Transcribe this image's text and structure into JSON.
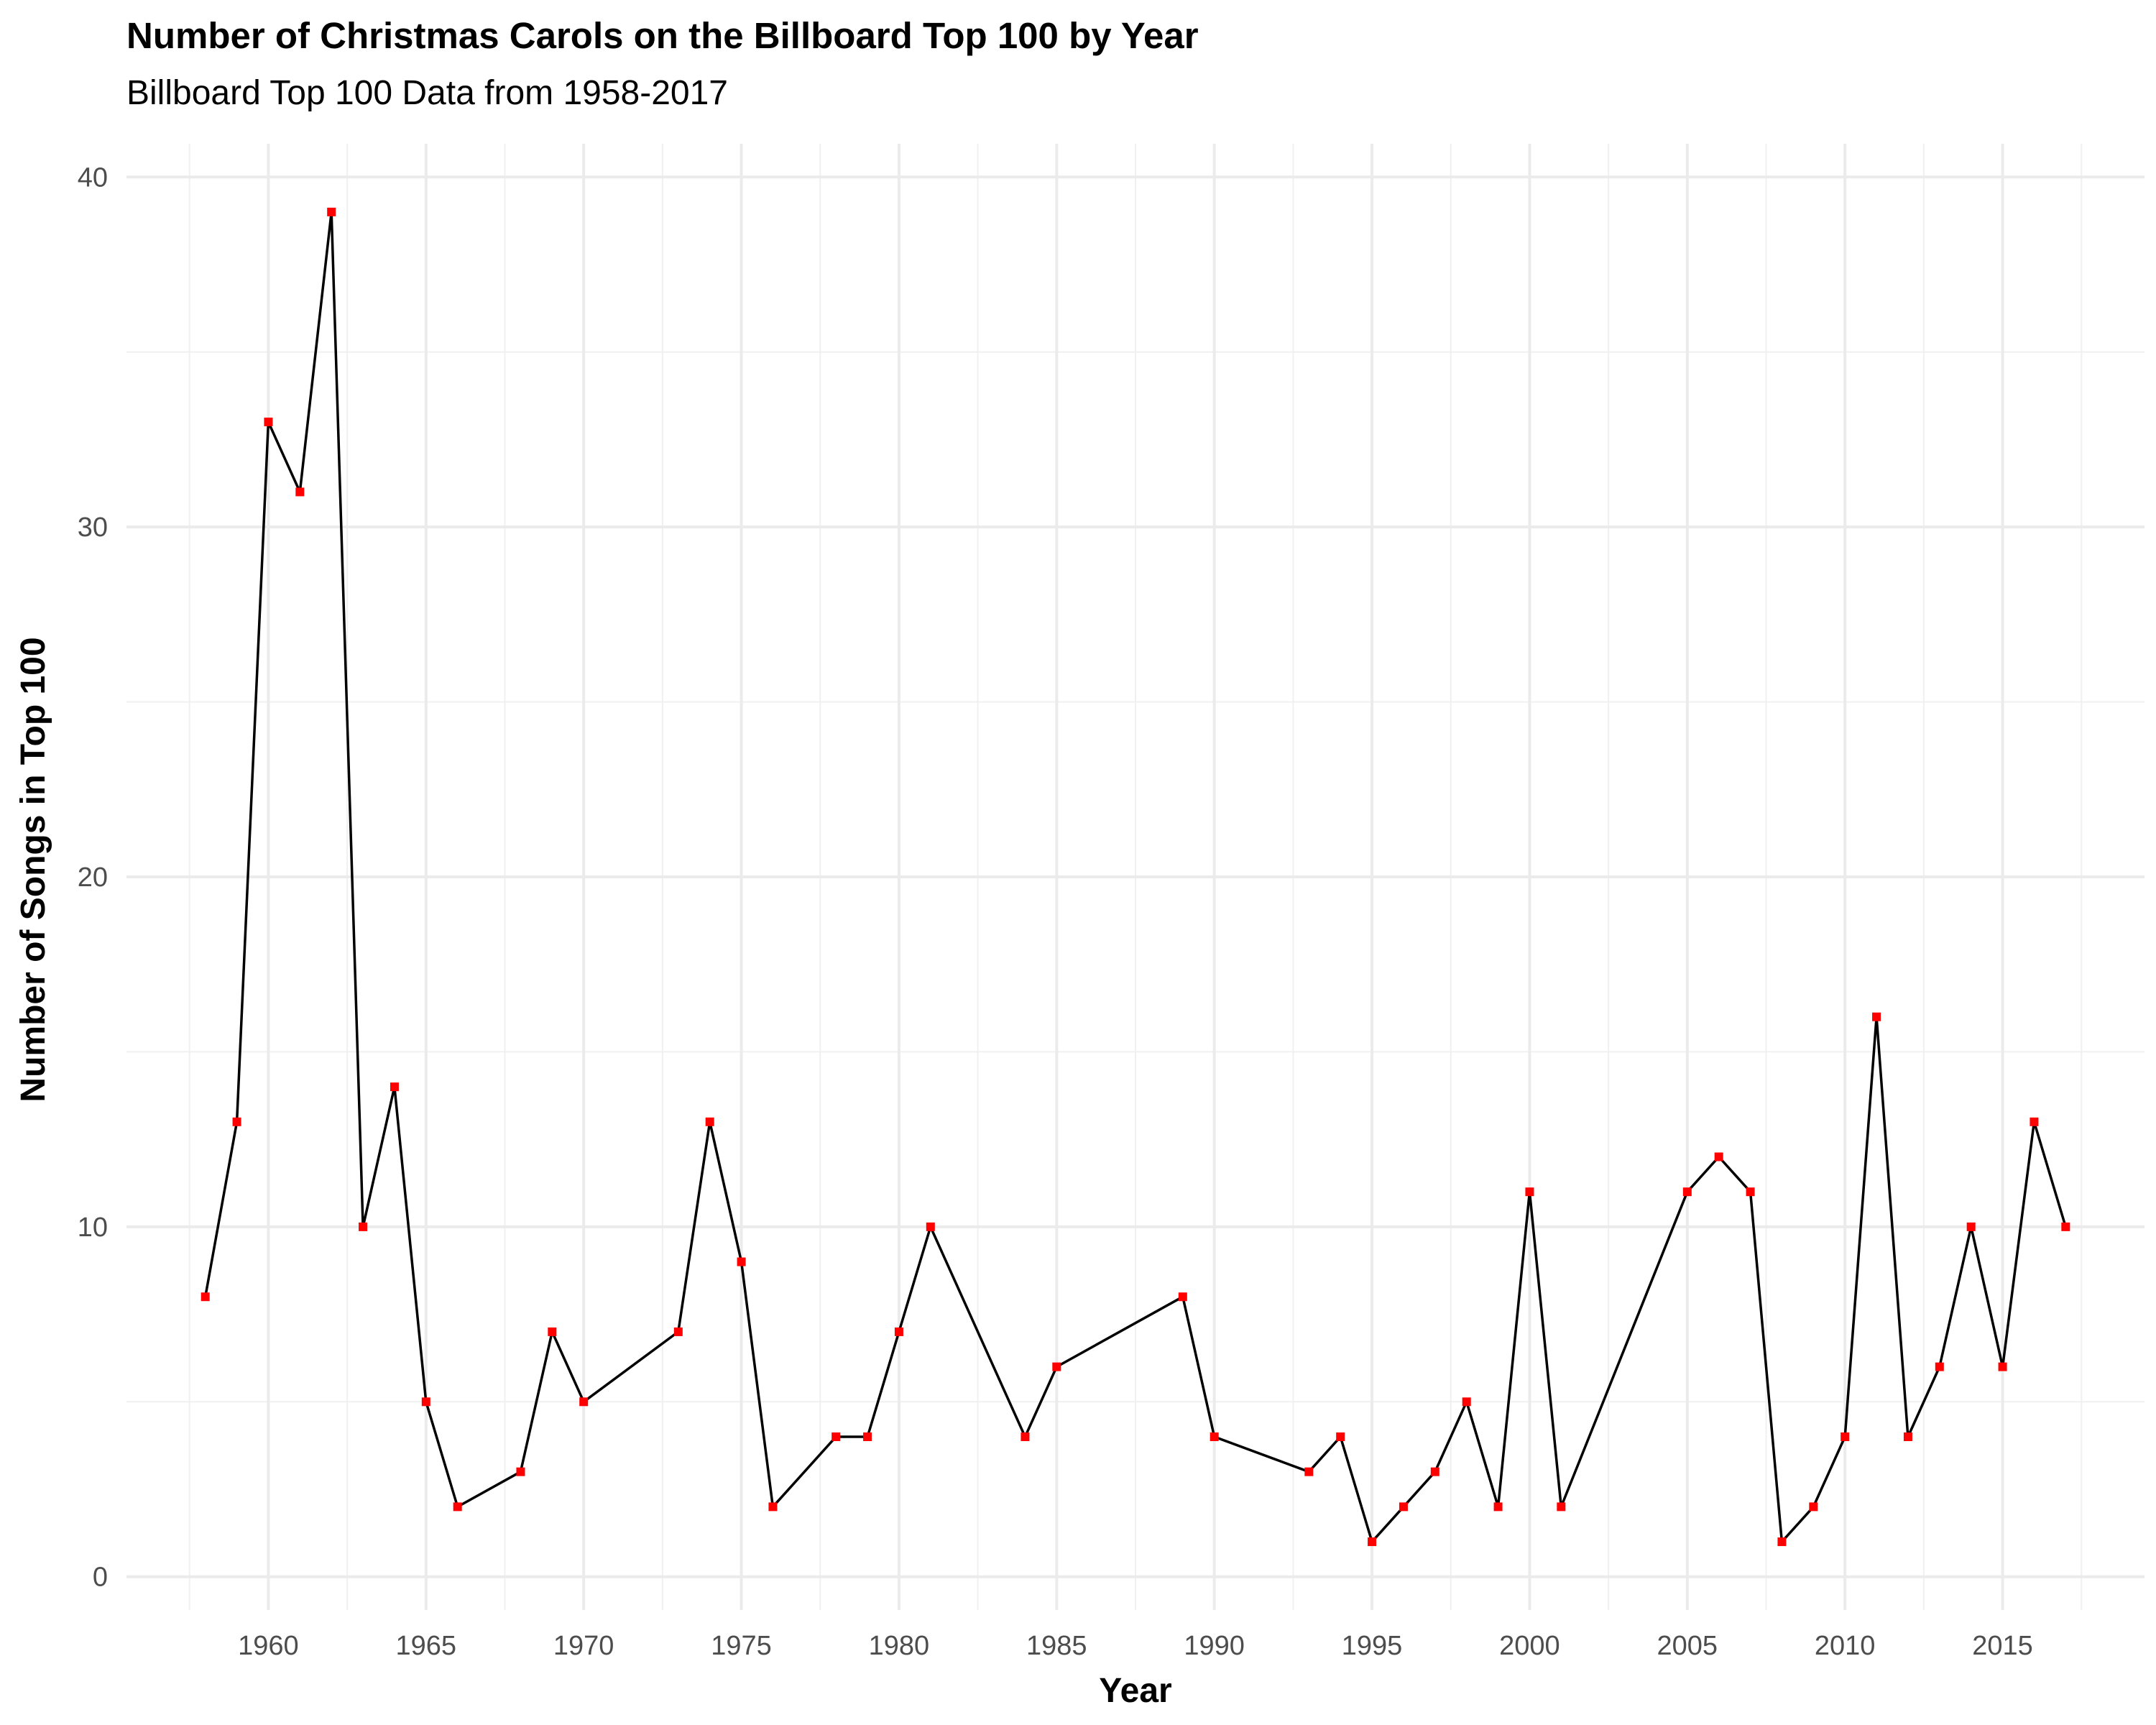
{
  "chart_data": {
    "type": "line",
    "title": "Number of Christmas Carols on the Billboard Top 100 by Year",
    "subtitle": "Billboard Top 100 Data from 1958-2017",
    "xlabel": "Year",
    "ylabel": "Number of Songs in Top 100",
    "xlim": [
      1955.5,
      2019.5
    ],
    "ylim": [
      -0.95,
      40.95
    ],
    "x_ticks": [
      1960,
      1965,
      1970,
      1975,
      1980,
      1985,
      1990,
      1995,
      2000,
      2005,
      2010,
      2015
    ],
    "y_ticks": [
      0,
      10,
      20,
      30,
      40
    ],
    "grid": true,
    "legend": "none",
    "line_color": "#000000",
    "point_color": "#ff0000",
    "series": [
      {
        "x": [
          1958,
          1959,
          1960,
          1961,
          1962,
          1963,
          1964,
          1965,
          1966,
          1968,
          1969,
          1970,
          1973,
          1974,
          1975,
          1976,
          1978,
          1979,
          1980,
          1981,
          1984,
          1985,
          1989,
          1990,
          1993,
          1994,
          1995,
          1996,
          1997,
          1998,
          1999,
          2000,
          2001,
          2005,
          2006,
          2007,
          2008,
          2009,
          2010,
          2011,
          2012,
          2013,
          2014,
          2015,
          2016,
          2017
        ],
        "values": [
          8,
          13,
          33,
          31,
          39,
          10,
          14,
          5,
          2,
          3,
          7,
          5,
          7,
          13,
          9,
          2,
          4,
          4,
          7,
          10,
          4,
          6,
          8,
          4,
          3,
          4,
          1,
          2,
          3,
          5,
          2,
          11,
          2,
          11,
          12,
          11,
          1,
          2,
          4,
          16,
          4,
          6,
          10,
          6,
          13,
          10
        ]
      }
    ]
  }
}
